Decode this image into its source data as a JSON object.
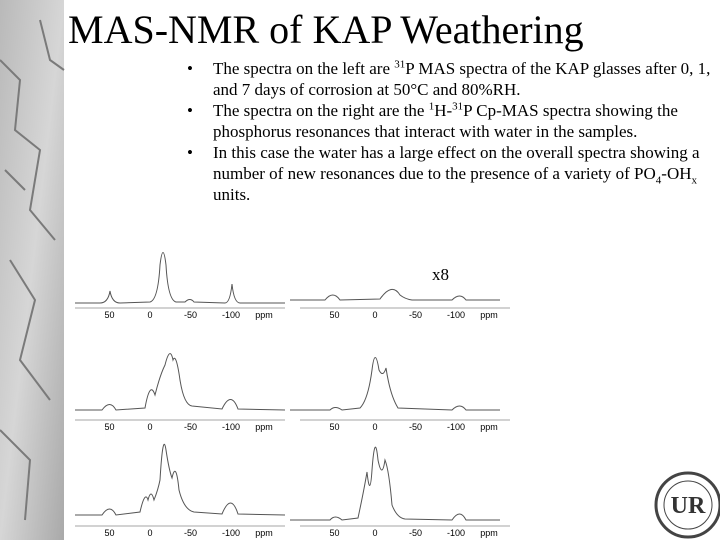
{
  "title": "MAS-NMR of KAP Weathering",
  "bullets": [
    {
      "segments": [
        {
          "text": "The spectra on the left are "
        },
        {
          "sup": "31"
        },
        {
          "text": "P MAS spectra of the KAP glasses after 0, 1, and 7 days of corrosion at 50°C and 80%RH."
        }
      ]
    },
    {
      "segments": [
        {
          "text": "The spectra on the right are the "
        },
        {
          "sup": "1"
        },
        {
          "text": "H-"
        },
        {
          "sup": "31"
        },
        {
          "text": "P Cp-MAS spectra showing the phosphorus resonances that interact with water in the samples."
        }
      ]
    },
    {
      "segments": [
        {
          "text": "In this case the water has a large effect on the overall spectra showing a number of new resonances due to the presence of a variety of PO"
        },
        {
          "sub": "4"
        },
        {
          "text": "-OH"
        },
        {
          "sub": "x"
        },
        {
          "text": " units."
        }
      ]
    }
  ],
  "annotation": "x8",
  "panels": [
    {
      "xticks": [
        50,
        0,
        -50,
        -100
      ],
      "unit": "ppm"
    },
    {
      "xticks": [
        50,
        0,
        -50,
        -100
      ],
      "unit": "ppm"
    },
    {
      "xticks": [
        50,
        0,
        -50,
        -100
      ],
      "unit": "ppm"
    },
    {
      "xticks": [
        50,
        0,
        -50,
        -100
      ],
      "unit": "ppm"
    },
    {
      "xticks": [
        50,
        0,
        -50,
        -100
      ],
      "unit": "ppm"
    },
    {
      "xticks": [
        50,
        0,
        -50,
        -100
      ],
      "unit": "ppm"
    }
  ],
  "logo": "UR"
}
